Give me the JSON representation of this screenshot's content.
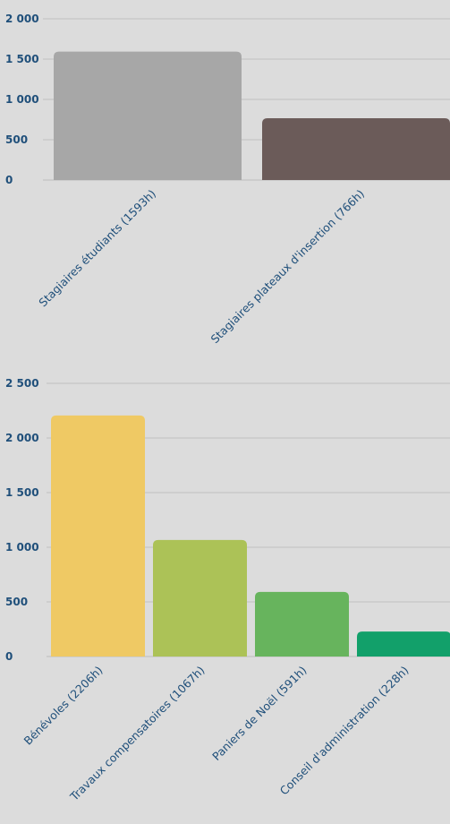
{
  "chart_data": [
    {
      "type": "bar",
      "title": "",
      "xlabel": "",
      "ylabel": "",
      "ylim": [
        0,
        2000
      ],
      "yticks": [
        "0",
        "500",
        "1 000",
        "1 500",
        "2 000"
      ],
      "grid": true,
      "categories": [
        "Stagiaires étudiants (1593h)",
        "Stagiaires plateaux d'insertion (766h)"
      ],
      "values": [
        1593,
        766
      ],
      "colors": [
        "#a7a7a7",
        "#6b5b59"
      ]
    },
    {
      "type": "bar",
      "title": "",
      "xlabel": "",
      "ylabel": "",
      "ylim": [
        0,
        2500
      ],
      "yticks": [
        "0",
        "500",
        "1 000",
        "1 500",
        "2 000",
        "2 500"
      ],
      "grid": true,
      "categories": [
        "Bénévoles (2206h)",
        "Travaux compensatoires (1067h)",
        "Paniers de Noël (591h)",
        "Conseil d'administration (228h)"
      ],
      "values": [
        2206,
        1067,
        591,
        228
      ],
      "colors": [
        "#efc964",
        "#acc257",
        "#67b45d",
        "#12a06a"
      ]
    }
  ]
}
